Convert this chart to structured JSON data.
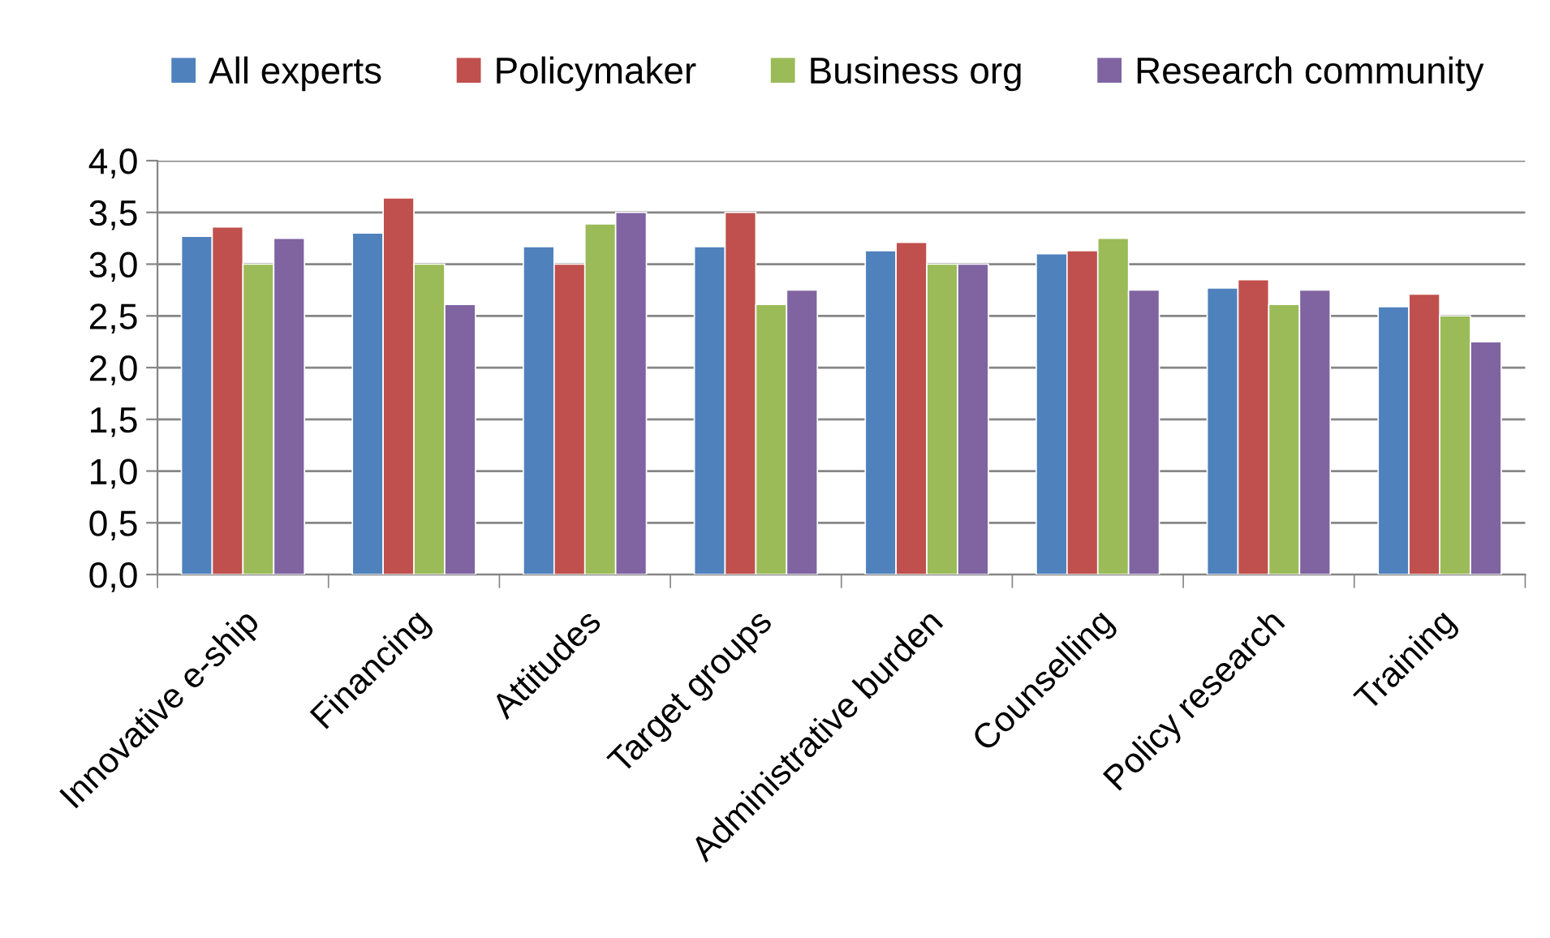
{
  "chart_data": {
    "type": "bar",
    "categories": [
      "Innovative e-ship",
      "Financing",
      "Attitudes",
      "Target groups",
      "Administrative burden",
      "Counselling",
      "Policy research",
      "Training"
    ],
    "series": [
      {
        "name": "All experts",
        "color": "#4f81bd",
        "values": [
          3.27,
          3.3,
          3.17,
          3.17,
          3.13,
          3.1,
          2.77,
          2.59
        ]
      },
      {
        "name": "Policymaker",
        "color": "#c0504d",
        "values": [
          3.36,
          3.64,
          3.0,
          3.5,
          3.21,
          3.13,
          2.85,
          2.71
        ]
      },
      {
        "name": "Business org",
        "color": "#9bbb59",
        "values": [
          3.0,
          3.0,
          3.39,
          2.61,
          3.0,
          3.25,
          2.61,
          2.5
        ]
      },
      {
        "name": "Research community",
        "color": "#8064a2",
        "values": [
          3.25,
          2.61,
          3.5,
          2.75,
          3.0,
          2.75,
          2.75,
          2.25
        ]
      }
    ],
    "ylim": [
      0,
      4
    ],
    "yticks": [
      {
        "value": 0,
        "label": "0,0"
      },
      {
        "value": 0.5,
        "label": "0,5"
      },
      {
        "value": 1,
        "label": "1,0"
      },
      {
        "value": 1.5,
        "label": "1,5"
      },
      {
        "value": 2,
        "label": "2,0"
      },
      {
        "value": 2.5,
        "label": "2,5"
      },
      {
        "value": 3,
        "label": "3,0"
      },
      {
        "value": 3.5,
        "label": "3,5"
      },
      {
        "value": 4,
        "label": "4,0"
      }
    ],
    "grid": "y",
    "legend": "top"
  }
}
